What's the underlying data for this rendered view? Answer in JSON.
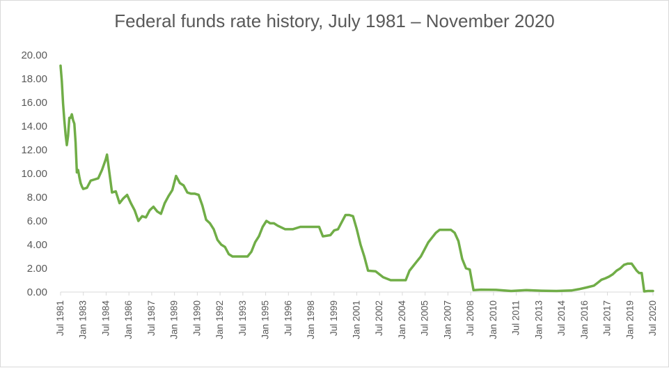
{
  "chart_data": {
    "type": "line",
    "title": "Federal funds rate history, July 1981 – November 2020",
    "xlabel": "",
    "ylabel": "",
    "ylim": [
      0,
      20
    ],
    "yticks": [
      "0.00",
      "2.00",
      "4.00",
      "6.00",
      "8.00",
      "10.00",
      "12.00",
      "14.00",
      "16.00",
      "18.00",
      "20.00"
    ],
    "xtick_labels": [
      "Jul 1981",
      "Jan 1983",
      "Jul 1984",
      "Jan 1986",
      "Jul 1987",
      "Jan 1989",
      "Jul 1990",
      "Jan 1992",
      "Jul 1993",
      "Jan 1995",
      "Jul 1996",
      "Jan 1998",
      "Jul 1999",
      "Jan 2001",
      "Jul 2002",
      "Jan 2004",
      "Jul 2005",
      "Jan 2007",
      "Jul 2008",
      "Jan 2010",
      "Jul 2011",
      "Jan 2013",
      "Jul 2014",
      "Jan 2016",
      "Jul 2017",
      "Jan 2019",
      "Jul 2020"
    ],
    "grid": false,
    "line_color": "#70ad47",
    "series": [
      {
        "name": "",
        "x": [
          "1981-07",
          "1981-08",
          "1981-09",
          "1981-10",
          "1981-11",
          "1981-12",
          "1982-01",
          "1982-02",
          "1982-03",
          "1982-04",
          "1982-05",
          "1982-06",
          "1982-07",
          "1982-08",
          "1982-09",
          "1982-10",
          "1982-11",
          "1982-12",
          "1983-01",
          "1983-04",
          "1983-07",
          "1983-10",
          "1984-01",
          "1984-04",
          "1984-07",
          "1984-08",
          "1984-10",
          "1984-12",
          "1985-03",
          "1985-06",
          "1985-09",
          "1985-12",
          "1986-03",
          "1986-06",
          "1986-09",
          "1986-12",
          "1987-03",
          "1987-06",
          "1987-09",
          "1987-12",
          "1988-03",
          "1988-06",
          "1988-09",
          "1988-12",
          "1989-03",
          "1989-06",
          "1989-09",
          "1989-12",
          "1990-03",
          "1990-06",
          "1990-09",
          "1990-12",
          "1991-03",
          "1991-06",
          "1991-09",
          "1991-12",
          "1992-03",
          "1992-06",
          "1992-09",
          "1992-12",
          "1993-06",
          "1993-12",
          "1994-03",
          "1994-06",
          "1994-09",
          "1994-12",
          "1995-03",
          "1995-06",
          "1995-09",
          "1995-12",
          "1996-06",
          "1996-12",
          "1997-06",
          "1997-12",
          "1998-06",
          "1998-09",
          "1998-12",
          "1999-06",
          "1999-09",
          "1999-12",
          "2000-03",
          "2000-06",
          "2000-09",
          "2000-12",
          "2001-03",
          "2001-06",
          "2001-09",
          "2001-12",
          "2002-06",
          "2002-12",
          "2003-06",
          "2003-12",
          "2004-06",
          "2004-09",
          "2004-12",
          "2005-03",
          "2005-06",
          "2005-09",
          "2005-12",
          "2006-03",
          "2006-06",
          "2006-09",
          "2006-12",
          "2007-06",
          "2007-09",
          "2007-12",
          "2008-03",
          "2008-06",
          "2008-09",
          "2008-12",
          "2009-06",
          "2010-06",
          "2011-06",
          "2012-06",
          "2013-06",
          "2014-06",
          "2015-06",
          "2015-12",
          "2016-06",
          "2016-12",
          "2017-03",
          "2017-06",
          "2017-09",
          "2017-12",
          "2018-03",
          "2018-06",
          "2018-09",
          "2018-12",
          "2019-03",
          "2019-06",
          "2019-08",
          "2019-10",
          "2019-12",
          "2020-02",
          "2020-04",
          "2020-07",
          "2020-11"
        ],
        "values": [
          19.1,
          17.8,
          15.9,
          14.5,
          13.3,
          12.4,
          13.2,
          14.7,
          14.7,
          15.0,
          14.5,
          14.2,
          12.6,
          10.1,
          10.3,
          9.7,
          9.2,
          8.9,
          8.7,
          8.8,
          9.4,
          9.5,
          9.6,
          10.3,
          11.2,
          11.6,
          10.0,
          8.4,
          8.5,
          7.5,
          7.9,
          8.2,
          7.5,
          6.9,
          6.0,
          6.4,
          6.3,
          6.9,
          7.2,
          6.8,
          6.6,
          7.5,
          8.1,
          8.6,
          9.8,
          9.2,
          9.0,
          8.4,
          8.3,
          8.3,
          8.2,
          7.3,
          6.1,
          5.8,
          5.3,
          4.4,
          4.0,
          3.8,
          3.2,
          3.0,
          3.0,
          3.0,
          3.4,
          4.2,
          4.7,
          5.5,
          6.0,
          5.8,
          5.8,
          5.6,
          5.3,
          5.3,
          5.5,
          5.5,
          5.5,
          5.5,
          4.7,
          4.8,
          5.2,
          5.3,
          5.9,
          6.5,
          6.5,
          6.4,
          5.3,
          4.0,
          3.0,
          1.8,
          1.75,
          1.25,
          1.0,
          1.0,
          1.0,
          1.8,
          2.2,
          2.6,
          3.0,
          3.6,
          4.2,
          4.6,
          5.0,
          5.25,
          5.25,
          5.25,
          5.0,
          4.3,
          2.8,
          2.0,
          1.9,
          0.16,
          0.2,
          0.18,
          0.09,
          0.16,
          0.11,
          0.09,
          0.13,
          0.24,
          0.38,
          0.54,
          0.79,
          1.04,
          1.15,
          1.3,
          1.5,
          1.8,
          2.0,
          2.3,
          2.4,
          2.4,
          2.1,
          1.8,
          1.6,
          1.6,
          0.05,
          0.09,
          0.09
        ]
      }
    ]
  }
}
